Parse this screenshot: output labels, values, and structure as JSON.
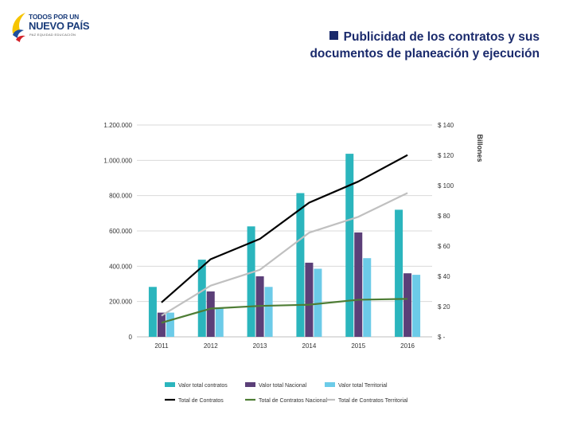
{
  "logo": {
    "line1": "TODOS POR UN",
    "line2": "NUEVO PAÍS",
    "line3": "PAZ   EQUIDAD   EDUCACIÓN"
  },
  "header": {
    "title_line1": "Publicidad de los contratos y sus",
    "title_line2": "documentos de planeación y ejecución"
  },
  "chart_data": {
    "type": "bar",
    "categories": [
      "2011",
      "2012",
      "2013",
      "2014",
      "2015",
      "2016"
    ],
    "ylim": [
      0,
      1200000
    ],
    "y_ticks": [
      "0",
      "200.000",
      "400.000",
      "600.000",
      "800.000",
      "1.000.000",
      "1.200.000"
    ],
    "y2lim": [
      0,
      140
    ],
    "y2_ticks": [
      "$ -",
      "$ 20",
      "$ 40",
      "$ 60",
      "$ 80",
      "$ 100",
      "$ 120",
      "$ 140"
    ],
    "y2label": "Billones",
    "grid": true,
    "legend_position": "bottom",
    "bar_series": [
      {
        "name": "Valor total contratos",
        "axis": "right",
        "color": "#2bb5bd",
        "values": [
          33,
          51,
          73,
          95,
          121,
          84
        ]
      },
      {
        "name": "Valor total Nacional",
        "axis": "right",
        "color": "#5b3f78",
        "values": [
          16,
          30,
          40,
          49,
          69,
          42
        ]
      },
      {
        "name": "Valor total Territorial",
        "axis": "right",
        "color": "#6ccbe8",
        "values": [
          16,
          19,
          33,
          45,
          52,
          41
        ]
      }
    ],
    "line_series": [
      {
        "name": "Total de Contratos",
        "axis": "left",
        "color": "#000000",
        "values": [
          195000,
          440000,
          555000,
          760000,
          880000,
          1030000
        ]
      },
      {
        "name": "Total de Contratos Nacional",
        "axis": "left",
        "color": "#4e7d35",
        "values": [
          80000,
          160000,
          175000,
          182000,
          210000,
          215000
        ]
      },
      {
        "name": "Total de Contratos Territorial",
        "axis": "left",
        "color": "#c0c0c0",
        "values": [
          120000,
          290000,
          380000,
          590000,
          680000,
          815000
        ]
      }
    ]
  }
}
